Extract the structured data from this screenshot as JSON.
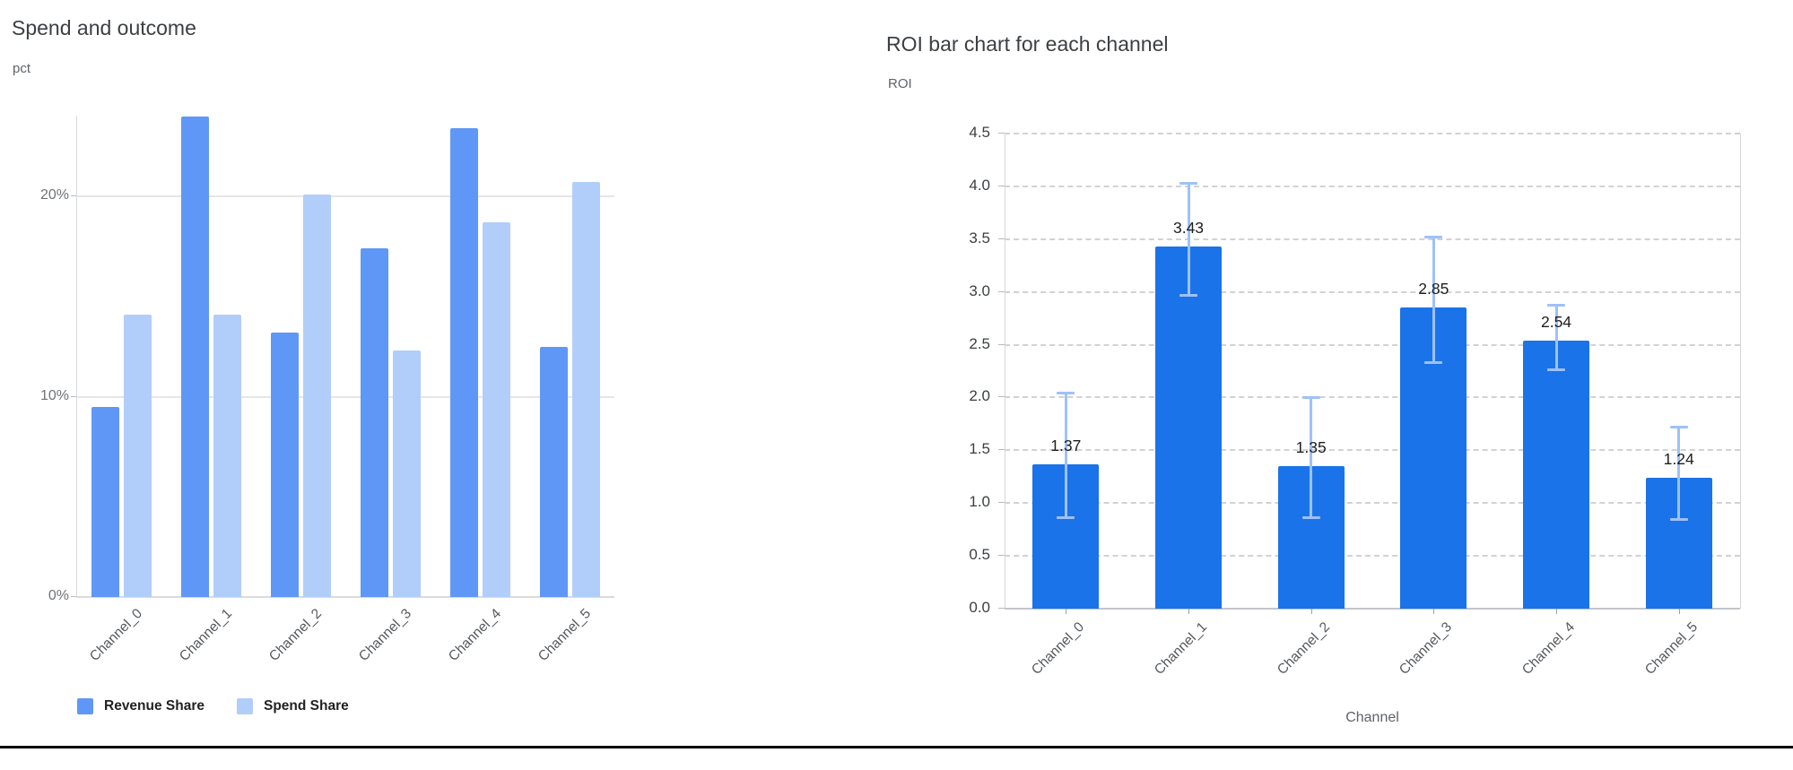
{
  "window": {
    "background": "#ffffff",
    "bottom_border_color": "#000000"
  },
  "chart_data": [
    {
      "id": "spend-and-outcome",
      "type": "bar",
      "title": "Spend and outcome",
      "ylabel": "pct",
      "xlabel": "",
      "unit": "%",
      "categories": [
        "Channel_0",
        "Channel_1",
        "Channel_2",
        "Channel_3",
        "Channel_4",
        "Channel_5"
      ],
      "series": [
        {
          "name": "Revenue Share",
          "color": "#5f97f6",
          "values": [
            9.5,
            24.0,
            13.2,
            17.4,
            23.4,
            12.5
          ]
        },
        {
          "name": "Spend Share",
          "color": "#b1cdfa",
          "values": [
            14.1,
            14.1,
            20.1,
            12.3,
            18.7,
            20.7
          ]
        }
      ],
      "y_ticks": [
        {
          "value": 0,
          "label": "0%"
        },
        {
          "value": 10,
          "label": "10%"
        },
        {
          "value": 20,
          "label": "20%"
        }
      ],
      "ylim": [
        0,
        24
      ],
      "grid": "solid-horizontal",
      "legend_position": "bottom-left"
    },
    {
      "id": "roi-by-channel",
      "type": "bar",
      "title": "ROI bar chart for each channel",
      "ylabel": "ROI",
      "xlabel": "Channel",
      "categories": [
        "Channel_0",
        "Channel_1",
        "Channel_2",
        "Channel_3",
        "Channel_4",
        "Channel_5"
      ],
      "values": [
        1.37,
        3.43,
        1.35,
        2.85,
        2.54,
        1.24
      ],
      "bar_labels": [
        "1.37",
        "3.43",
        "1.35",
        "2.85",
        "2.54",
        "1.24"
      ],
      "error_low": [
        0.86,
        2.96,
        0.86,
        2.33,
        2.26,
        0.84
      ],
      "error_high": [
        2.05,
        4.03,
        2.0,
        3.52,
        2.88,
        1.72
      ],
      "bar_color": "#1a73e8",
      "error_color": "#9ec1f9",
      "y_ticks": [
        {
          "value": 0.0,
          "label": "0.0"
        },
        {
          "value": 0.5,
          "label": "0.5"
        },
        {
          "value": 1.0,
          "label": "1.0"
        },
        {
          "value": 1.5,
          "label": "1.5"
        },
        {
          "value": 2.0,
          "label": "2.0"
        },
        {
          "value": 2.5,
          "label": "2.5"
        },
        {
          "value": 3.0,
          "label": "3.0"
        },
        {
          "value": 3.5,
          "label": "3.5"
        },
        {
          "value": 4.0,
          "label": "4.0"
        },
        {
          "value": 4.5,
          "label": "4.5"
        }
      ],
      "ylim": [
        0,
        4.5
      ],
      "grid": "dashed-horizontal",
      "legend_position": "none"
    }
  ]
}
